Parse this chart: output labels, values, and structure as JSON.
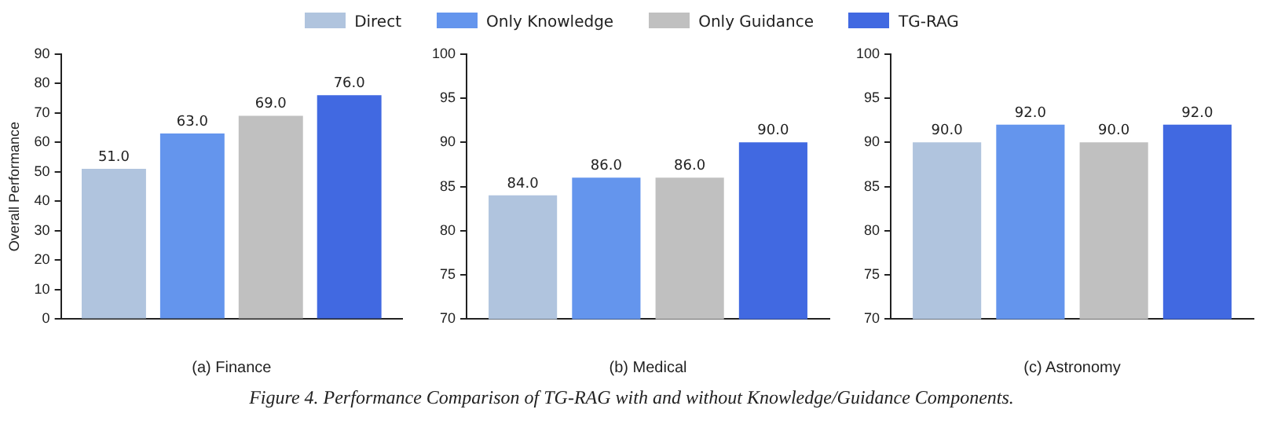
{
  "chart_data": [
    {
      "type": "bar",
      "xlabel": "(a) Finance",
      "ylabel": "Overall Performance",
      "categories": [
        null
      ],
      "legend": "top",
      "series": [
        {
          "name": "Direct",
          "color": "#b0c4de",
          "values": [
            51
          ],
          "value_labels": [
            "51.0"
          ]
        },
        {
          "name": "Only Knowledge",
          "color": "#6495ed",
          "values": [
            63
          ],
          "value_labels": [
            "63.0"
          ]
        },
        {
          "name": "Only Guidance",
          "color": "#c0c0c0",
          "values": [
            69
          ],
          "value_labels": [
            "69.0"
          ]
        },
        {
          "name": "TG-RAG",
          "color": "#4169e1",
          "values": [
            76
          ],
          "value_labels": [
            "76.0"
          ]
        }
      ],
      "ylim": [
        0,
        90
      ],
      "yticks": [
        0,
        10,
        20,
        30,
        40,
        50,
        60,
        70,
        80,
        90
      ],
      "grid": false
    },
    {
      "type": "bar",
      "xlabel": "(b) Medical",
      "categories": [
        null
      ],
      "series": [
        {
          "color": "#b0c4de",
          "values": [
            84
          ],
          "value_labels": [
            "84.0"
          ]
        },
        {
          "color": "#6495ed",
          "values": [
            86
          ],
          "value_labels": [
            "86.0"
          ]
        },
        {
          "color": "#c0c0c0",
          "values": [
            86
          ],
          "value_labels": [
            "86.0"
          ]
        },
        {
          "color": "#4169e1",
          "values": [
            90
          ],
          "value_labels": [
            "90.0"
          ]
        }
      ],
      "ylim": [
        70,
        100
      ],
      "yticks": [
        70,
        75,
        80,
        85,
        90,
        95,
        100
      ],
      "grid": false,
      "annotations": [
        "Figure 4. Performance Comparison of TG-RAG with and without Knowledge/Guidance Components."
      ]
    },
    {
      "type": "bar",
      "xlabel": "(c) Astronomy",
      "categories": [
        null
      ],
      "series": [
        {
          "color": "#b0c4de",
          "values": [
            90
          ],
          "value_labels": [
            "90.0"
          ]
        },
        {
          "color": "#6495ed",
          "values": [
            92
          ],
          "value_labels": [
            "92.0"
          ]
        },
        {
          "color": "#c0c0c0",
          "values": [
            90
          ],
          "value_labels": [
            "90.0"
          ]
        },
        {
          "color": "#4169e1",
          "values": [
            92
          ],
          "value_labels": [
            "92.0"
          ]
        }
      ],
      "ylim": [
        70,
        100
      ],
      "yticks": [
        70,
        75,
        80,
        85,
        90,
        95,
        100
      ],
      "grid": false
    }
  ]
}
